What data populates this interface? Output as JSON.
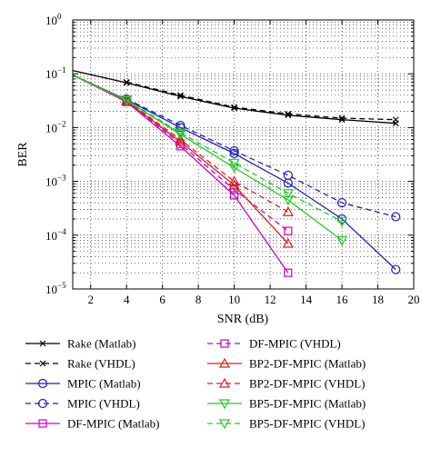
{
  "chart_data": {
    "type": "line",
    "xlabel": "SNR (dB)",
    "ylabel": "BER",
    "xlim": [
      1,
      20
    ],
    "ylim": [
      1e-05,
      1
    ],
    "yscale": "log",
    "grid": true,
    "x_ticks": [
      2,
      4,
      6,
      8,
      10,
      12,
      14,
      16,
      18,
      20
    ],
    "y_ticks": [
      {
        "value": 1e-05,
        "base": "10",
        "exp": "−5"
      },
      {
        "value": 0.0001,
        "base": "10",
        "exp": "−4"
      },
      {
        "value": 0.001,
        "base": "10",
        "exp": "−3"
      },
      {
        "value": 0.01,
        "base": "10",
        "exp": "−2"
      },
      {
        "value": 0.1,
        "base": "10",
        "exp": "−1"
      },
      {
        "value": 1,
        "base": "10",
        "exp": "0"
      }
    ],
    "legend_position": "below",
    "series": [
      {
        "name": "Rake (Matlab)",
        "color": "#000000",
        "dash": "solid",
        "marker": "x",
        "x": [
          1,
          4,
          7,
          10,
          13,
          16,
          19
        ],
        "y": [
          0.115,
          0.068,
          0.038,
          0.023,
          0.017,
          0.014,
          0.012
        ]
      },
      {
        "name": "Rake (VHDL)",
        "color": "#000000",
        "dash": "dashed",
        "marker": "x",
        "x": [
          4,
          7,
          10,
          13,
          16,
          19
        ],
        "y": [
          0.07,
          0.04,
          0.024,
          0.018,
          0.015,
          0.014
        ]
      },
      {
        "name": "MPIC (Matlab)",
        "color": "#1f1fbf",
        "dash": "solid",
        "marker": "circle",
        "x": [
          1,
          4,
          7,
          10,
          13,
          16,
          19
        ],
        "y": [
          0.095,
          0.033,
          0.01,
          0.0033,
          0.00093,
          0.0002,
          2.3e-05
        ]
      },
      {
        "name": "MPIC (VHDL)",
        "color": "#1f1fbf",
        "dash": "dashed",
        "marker": "circle",
        "x": [
          4,
          7,
          10,
          13,
          16,
          19
        ],
        "y": [
          0.034,
          0.011,
          0.0037,
          0.0013,
          0.0004,
          0.00022
        ]
      },
      {
        "name": "DF-MPIC (Matlab)",
        "color": "#cc00cc",
        "dash": "solid",
        "marker": "square",
        "x": [
          1,
          4,
          7,
          10,
          13
        ],
        "y": [
          0.095,
          0.03,
          0.0045,
          0.00055,
          2e-05
        ]
      },
      {
        "name": "DF-MPIC (VHDL)",
        "color": "#cc00cc",
        "dash": "dashed",
        "marker": "square",
        "x": [
          4,
          7,
          10,
          13
        ],
        "y": [
          0.031,
          0.005,
          0.0007,
          0.00012
        ]
      },
      {
        "name": "BP2-DF-MPIC (Matlab)",
        "color": "#d62020",
        "dash": "solid",
        "marker": "triangle-up",
        "x": [
          1,
          4,
          7,
          10,
          13
        ],
        "y": [
          0.095,
          0.031,
          0.0055,
          0.00085,
          7e-05
        ]
      },
      {
        "name": "BP2-DF-MPIC (VHDL)",
        "color": "#d62020",
        "dash": "dashed",
        "marker": "triangle-up",
        "x": [
          4,
          7,
          10,
          13
        ],
        "y": [
          0.032,
          0.006,
          0.001,
          0.00027
        ]
      },
      {
        "name": "BP5-DF-MPIC (Matlab)",
        "color": "#22cc22",
        "dash": "solid",
        "marker": "triangle-down",
        "x": [
          1,
          4,
          7,
          10,
          13,
          16
        ],
        "y": [
          0.095,
          0.032,
          0.0075,
          0.0018,
          0.00045,
          8e-05
        ]
      },
      {
        "name": "BP5-DF-MPIC (VHDL)",
        "color": "#22cc22",
        "dash": "dashed",
        "marker": "triangle-down",
        "x": [
          4,
          7,
          10,
          13,
          16
        ],
        "y": [
          0.033,
          0.008,
          0.0022,
          0.0006,
          0.00018
        ]
      }
    ]
  }
}
